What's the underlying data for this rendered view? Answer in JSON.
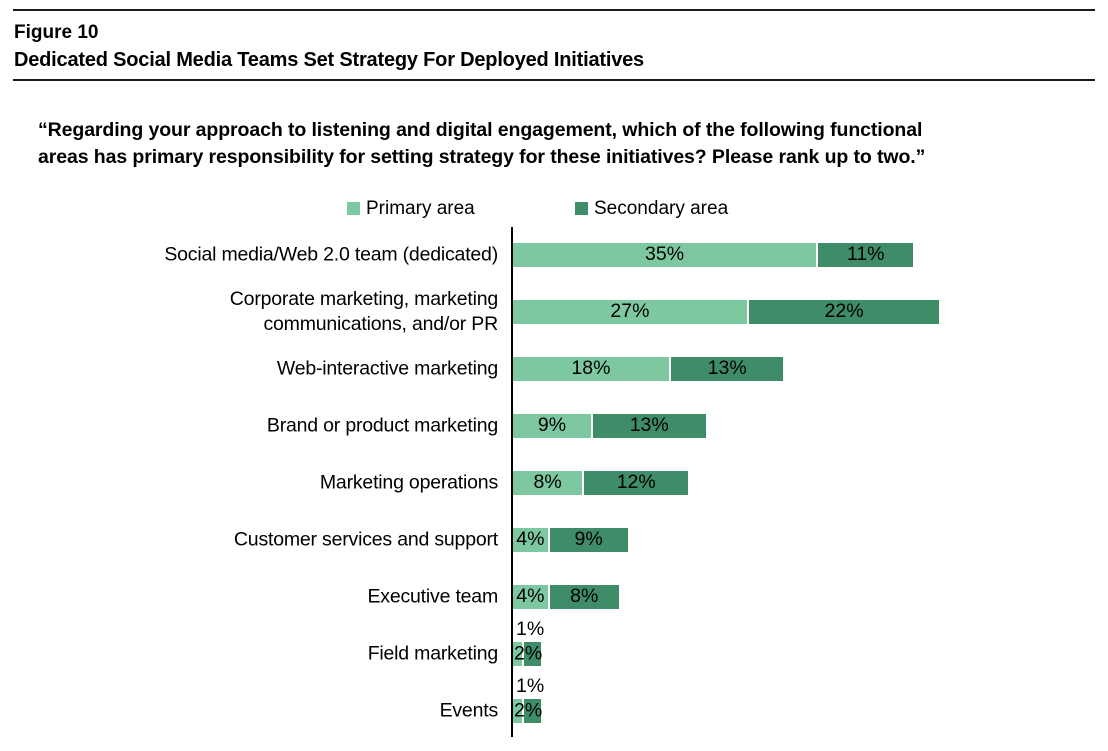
{
  "header": {
    "figure_label": "Figure 10",
    "figure_title": "Dedicated Social Media Teams Set Strategy For Deployed Initiatives"
  },
  "question_lines": [
    "“Regarding your approach to listening and digital engagement, which of the following functional",
    "areas has primary responsibility for setting strategy for these initiatives? Please rank up to two.”"
  ],
  "chart_data": {
    "type": "bar",
    "orientation": "horizontal",
    "stacked": true,
    "unit": "percent",
    "legend_position": "top",
    "colors": {
      "primary": "#7EC8A1",
      "secondary": "#3E8D68"
    },
    "legend": [
      {
        "name": "Primary area",
        "color": "#7EC8A1"
      },
      {
        "name": "Secondary area",
        "color": "#3E8D68"
      }
    ],
    "categories": [
      "Social media/Web 2.0 team (dedicated)",
      "Corporate marketing, marketing communications, and/or PR",
      "Web-interactive marketing",
      "Brand or product marketing",
      "Marketing operations",
      "Customer services and support",
      "Executive team",
      "Field marketing",
      "Events"
    ],
    "series": [
      {
        "name": "Primary area",
        "values": [
          35,
          27,
          18,
          9,
          8,
          4,
          4,
          1,
          1
        ]
      },
      {
        "name": "Secondary area",
        "values": [
          11,
          22,
          13,
          13,
          12,
          9,
          8,
          2,
          2
        ]
      }
    ],
    "rows": [
      {
        "category": "Social media/Web 2.0 team (dedicated)",
        "primary": 35,
        "primary_label": "35%",
        "secondary": 11,
        "secondary_label": "11%"
      },
      {
        "category": "Corporate marketing, marketing\ncommunications, and/or PR",
        "primary": 27,
        "primary_label": "27%",
        "secondary": 22,
        "secondary_label": "22%"
      },
      {
        "category": "Web-interactive marketing",
        "primary": 18,
        "primary_label": "18%",
        "secondary": 13,
        "secondary_label": "13%"
      },
      {
        "category": "Brand or product marketing",
        "primary": 9,
        "primary_label": "9%",
        "secondary": 13,
        "secondary_label": "13%"
      },
      {
        "category": "Marketing operations",
        "primary": 8,
        "primary_label": "8%",
        "secondary": 12,
        "secondary_label": "12%"
      },
      {
        "category": "Customer services and support",
        "primary": 4,
        "primary_label": "4%",
        "secondary": 9,
        "secondary_label": "9%"
      },
      {
        "category": "Executive team",
        "primary": 4,
        "primary_label": "4%",
        "secondary": 8,
        "secondary_label": "8%"
      },
      {
        "category": "Field marketing",
        "primary": 1,
        "primary_label": "1%",
        "secondary": 2,
        "secondary_label": "2%"
      },
      {
        "category": "Events",
        "primary": 1,
        "primary_label": "1%",
        "secondary": 2,
        "secondary_label": "2%"
      }
    ]
  }
}
